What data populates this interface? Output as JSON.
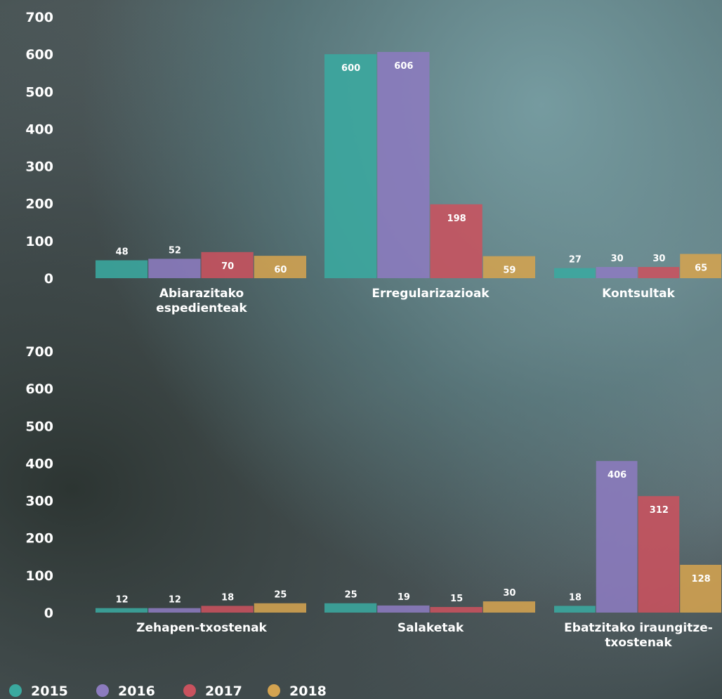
{
  "chart_data": {
    "type": "bar",
    "categories": [
      "Abiarazitako espedienteak",
      "Erregularizazioak",
      "Kontsultak",
      "Zehapen-txostenak",
      "Salaketak",
      "Ebatzitako iraungitze-txostenak"
    ],
    "series": [
      {
        "name": "2015",
        "color": "#3aa99f",
        "values": [
          48,
          600,
          27,
          12,
          25,
          18
        ]
      },
      {
        "name": "2016",
        "color": "#8c7bbf",
        "values": [
          52,
          606,
          30,
          12,
          19,
          406
        ]
      },
      {
        "name": "2017",
        "color": "#c9525e",
        "values": [
          70,
          198,
          30,
          18,
          15,
          312
        ]
      },
      {
        "name": "2018",
        "color": "#d4a350",
        "values": [
          60,
          59,
          65,
          25,
          30,
          128
        ]
      }
    ],
    "ylim": [
      0,
      700
    ],
    "yticks": [
      0,
      100,
      200,
      300,
      400,
      500,
      600,
      700
    ]
  }
}
